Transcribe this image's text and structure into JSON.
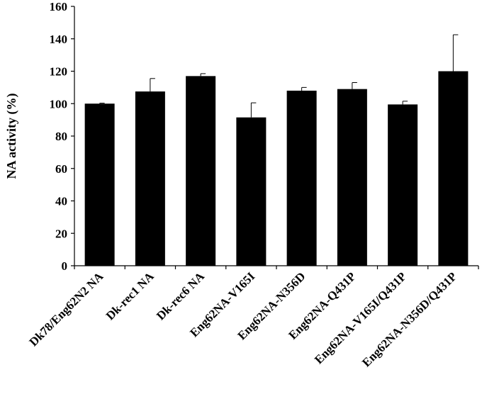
{
  "chart_data": {
    "type": "bar",
    "title": "",
    "xlabel": "",
    "ylabel": "NA activity (%)",
    "ylim": [
      0,
      160
    ],
    "yticks": [
      0,
      20,
      40,
      60,
      80,
      100,
      120,
      140,
      160
    ],
    "grid": false,
    "categories": [
      "Dk78/Eng62N2 NA",
      "Dk-rec1 NA",
      "Dk-rec6 NA",
      "Eng62NA-V165I",
      "Eng62NA-N356D",
      "Eng62NA-Q431P",
      "Eng62NA-V165I/Q431P",
      "Eng62NA-N356D/Q431P"
    ],
    "values": [
      100,
      107.5,
      117,
      91.5,
      108,
      109,
      99.5,
      120
    ],
    "error_plus": [
      0.3,
      8,
      1.5,
      9,
      2,
      4,
      2,
      22.5
    ],
    "bar_color": "#000000"
  }
}
